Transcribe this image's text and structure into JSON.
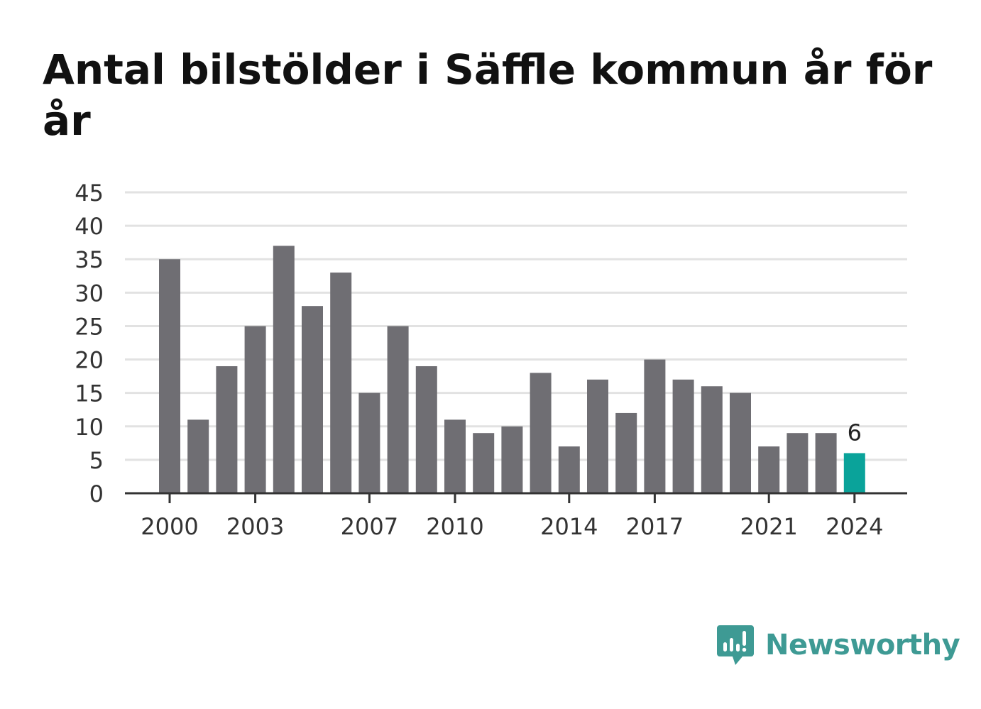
{
  "chart_data": {
    "type": "bar",
    "title": "Antal bilstölder i Säffle kommun år för år",
    "categories": [
      2000,
      2001,
      2002,
      2003,
      2004,
      2005,
      2006,
      2007,
      2008,
      2009,
      2010,
      2011,
      2012,
      2013,
      2014,
      2015,
      2016,
      2017,
      2018,
      2019,
      2020,
      2021,
      2022,
      2023,
      2024
    ],
    "values": [
      35,
      11,
      19,
      25,
      37,
      28,
      33,
      15,
      25,
      19,
      11,
      9,
      10,
      18,
      7,
      17,
      12,
      20,
      17,
      16,
      15,
      7,
      9,
      9,
      6
    ],
    "x_tick_labels": [
      "2000",
      "2003",
      "2007",
      "2010",
      "2014",
      "2017",
      "2021",
      "2024"
    ],
    "y_ticks": [
      "0",
      "5",
      "10",
      "15",
      "20",
      "25",
      "30",
      "35",
      "40",
      "45"
    ],
    "ylim": [
      0,
      45
    ],
    "xlabel": "",
    "ylabel": "",
    "grid": true,
    "legend": "none",
    "highlighted_category": 2024,
    "highlight_label": "6",
    "colors": {
      "bar": "#6f6e73",
      "highlight": "#0aa39a",
      "grid": "#e2e2e2",
      "axis": "#333333"
    }
  },
  "branding": {
    "name": "Newsworthy",
    "logo_icon": "bar-chart-speech-bubble-icon",
    "color": "#3e9a94"
  }
}
